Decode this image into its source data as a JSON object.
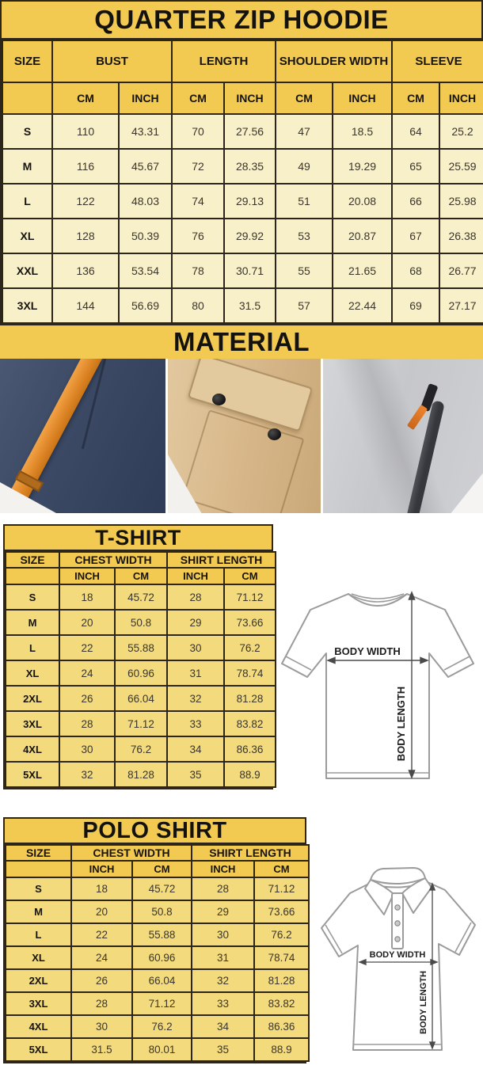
{
  "colors": {
    "band_gold": "#f2ca52",
    "cell_cream": "#f8f0c8",
    "cell_gold": "#f2da7d",
    "border_dark": "#2b251b",
    "strap_orange": "#dd8526",
    "navy_fabric": "#3c4a66",
    "khaki_fabric": "#d6b688",
    "gray_fleece": "#c9cacd"
  },
  "hoodie": {
    "title": "QUARTER ZIP HOODIE",
    "size_header": "SIZE",
    "groups": [
      "BUST",
      "LENGTH",
      "SHOULDER WIDTH",
      "SLEEVE"
    ],
    "units": [
      "CM",
      "INCH",
      "CM",
      "INCH",
      "CM",
      "INCH",
      "CM",
      "INCH"
    ],
    "rows": [
      {
        "size": "S",
        "values": [
          "110",
          "43.31",
          "70",
          "27.56",
          "47",
          "18.5",
          "64",
          "25.2"
        ]
      },
      {
        "size": "M",
        "values": [
          "116",
          "45.67",
          "72",
          "28.35",
          "49",
          "19.29",
          "65",
          "25.59"
        ]
      },
      {
        "size": "L",
        "values": [
          "122",
          "48.03",
          "74",
          "29.13",
          "51",
          "20.08",
          "66",
          "25.98"
        ]
      },
      {
        "size": "XL",
        "values": [
          "128",
          "50.39",
          "76",
          "29.92",
          "53",
          "20.87",
          "67",
          "26.38"
        ]
      },
      {
        "size": "XXL",
        "values": [
          "136",
          "53.54",
          "78",
          "30.71",
          "55",
          "21.65",
          "68",
          "26.77"
        ]
      },
      {
        "size": "3XL",
        "values": [
          "144",
          "56.69",
          "80",
          "31.5",
          "57",
          "22.44",
          "69",
          "27.17"
        ]
      }
    ]
  },
  "material": {
    "title": "MATERIAL",
    "photos": [
      {
        "name": "navy fleece with orange drawstring"
      },
      {
        "name": "khaki fabric pocket flap with snap buttons"
      },
      {
        "name": "gray heather fleece with zipper and orange pull"
      }
    ]
  },
  "tshirt": {
    "title": "T-SHIRT",
    "size_header": "SIZE",
    "groups": [
      "CHEST WIDTH",
      "SHIRT LENGTH"
    ],
    "units": [
      "INCH",
      "CM",
      "INCH",
      "CM"
    ],
    "rows": [
      {
        "size": "S",
        "values": [
          "18",
          "45.72",
          "28",
          "71.12"
        ]
      },
      {
        "size": "M",
        "values": [
          "20",
          "50.8",
          "29",
          "73.66"
        ]
      },
      {
        "size": "L",
        "values": [
          "22",
          "55.88",
          "30",
          "76.2"
        ]
      },
      {
        "size": "XL",
        "values": [
          "24",
          "60.96",
          "31",
          "78.74"
        ]
      },
      {
        "size": "2XL",
        "values": [
          "26",
          "66.04",
          "32",
          "81.28"
        ]
      },
      {
        "size": "3XL",
        "values": [
          "28",
          "71.12",
          "33",
          "83.82"
        ]
      },
      {
        "size": "4XL",
        "values": [
          "30",
          "76.2",
          "34",
          "86.36"
        ]
      },
      {
        "size": "5XL",
        "values": [
          "32",
          "81.28",
          "35",
          "88.9"
        ]
      }
    ],
    "diagram": {
      "width_label": "BODY WIDTH",
      "length_label": "BODY LENGTH"
    }
  },
  "polo": {
    "title": "POLO SHIRT",
    "size_header": "SIZE",
    "groups": [
      "CHEST WIDTH",
      "SHIRT LENGTH"
    ],
    "units": [
      "INCH",
      "CM",
      "INCH",
      "CM"
    ],
    "rows": [
      {
        "size": "S",
        "values": [
          "18",
          "45.72",
          "28",
          "71.12"
        ]
      },
      {
        "size": "M",
        "values": [
          "20",
          "50.8",
          "29",
          "73.66"
        ]
      },
      {
        "size": "L",
        "values": [
          "22",
          "55.88",
          "30",
          "76.2"
        ]
      },
      {
        "size": "XL",
        "values": [
          "24",
          "60.96",
          "31",
          "78.74"
        ]
      },
      {
        "size": "2XL",
        "values": [
          "26",
          "66.04",
          "32",
          "81.28"
        ]
      },
      {
        "size": "3XL",
        "values": [
          "28",
          "71.12",
          "33",
          "83.82"
        ]
      },
      {
        "size": "4XL",
        "values": [
          "30",
          "76.2",
          "34",
          "86.36"
        ]
      },
      {
        "size": "5XL",
        "values": [
          "31.5",
          "80.01",
          "35",
          "88.9"
        ]
      }
    ],
    "diagram": {
      "width_label": "BODY WIDTH",
      "length_label": "BODY LENGTH"
    }
  }
}
